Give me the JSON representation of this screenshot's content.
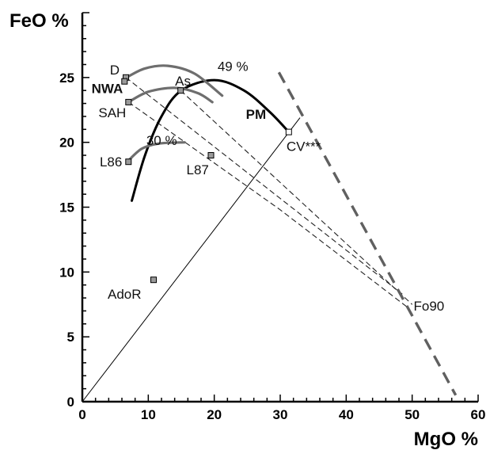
{
  "chart_data": {
    "type": "scatter",
    "title": "",
    "xlabel": "MgO %",
    "ylabel": "FeO %",
    "xlim": [
      0,
      60
    ],
    "ylim": [
      0,
      30
    ],
    "x_ticks": [
      0,
      10,
      20,
      30,
      40,
      50,
      60
    ],
    "y_ticks": [
      0,
      5,
      10,
      15,
      20,
      25
    ],
    "grid": false,
    "colors": {
      "axis": "#000000",
      "pm_curve": "#000000",
      "grey_curves": "#6e6e6e",
      "dashed_guides": "#222222",
      "olivine_line": "#606060",
      "point_fill": "#9a9a9a"
    },
    "points": [
      {
        "label": "D",
        "x": 6.6,
        "y": 25.0,
        "bold": false
      },
      {
        "label": "NWA",
        "x": 6.4,
        "y": 24.7,
        "bold": true
      },
      {
        "label": "As",
        "x": 14.9,
        "y": 24.0,
        "bold": false
      },
      {
        "label": "SAH",
        "x": 7.0,
        "y": 23.1,
        "bold": false
      },
      {
        "label": "CV***",
        "x": 31.3,
        "y": 20.8,
        "bold": false
      },
      {
        "label": "L87",
        "x": 19.5,
        "y": 19.0,
        "bold": false
      },
      {
        "label": "L86",
        "x": 7.0,
        "y": 18.5,
        "bold": false
      },
      {
        "label": "AdoR",
        "x": 10.8,
        "y": 9.4,
        "bold": false
      },
      {
        "label": "Fo90",
        "x": 49.5,
        "y": 7.2,
        "bold": false
      }
    ],
    "curves": [
      {
        "name": "PM",
        "style": "solid-thick",
        "points": [
          [
            7.5,
            15.5
          ],
          [
            9.5,
            19.0
          ],
          [
            12.0,
            22.0
          ],
          [
            15.0,
            24.0
          ],
          [
            20.0,
            24.8
          ],
          [
            24.5,
            24.0
          ],
          [
            28.5,
            22.3
          ],
          [
            31.3,
            20.8
          ]
        ]
      },
      {
        "name": "D-arc",
        "style": "grey",
        "points": [
          [
            6.7,
            25.0
          ],
          [
            9.5,
            25.7
          ],
          [
            13.0,
            25.9
          ],
          [
            17.0,
            25.3
          ],
          [
            21.2,
            23.6
          ]
        ]
      },
      {
        "name": "SAH-arc",
        "style": "grey",
        "points": [
          [
            7.0,
            23.1
          ],
          [
            10.0,
            23.9
          ],
          [
            14.0,
            24.2
          ],
          [
            17.5,
            23.8
          ],
          [
            19.7,
            23.1
          ]
        ]
      },
      {
        "name": "L86-arc",
        "style": "grey",
        "points": [
          [
            7.0,
            18.6
          ],
          [
            9.0,
            19.5
          ],
          [
            11.5,
            19.9
          ],
          [
            15.5,
            20.0
          ]
        ]
      }
    ],
    "dashed_lines": [
      [
        [
          6.6,
          25.0
        ],
        [
          48.5,
          8.3
        ]
      ],
      [
        [
          14.9,
          24.0
        ],
        [
          50.0,
          7.5
        ]
      ],
      [
        [
          7.0,
          23.1
        ],
        [
          30.0,
          14.8
        ],
        [
          49.5,
          7.2
        ]
      ]
    ],
    "solid_line": [
      [
        0,
        0
      ],
      [
        33.0,
        21.9
      ]
    ],
    "olivine_line": [
      [
        29.8,
        25.4
      ],
      [
        56.6,
        0.5
      ]
    ],
    "annotations": [
      {
        "text": "49 %",
        "x": 20.5,
        "y": 25.5
      },
      {
        "text": "PM",
        "x": 24.8,
        "y": 21.8,
        "bold": true
      },
      {
        "text": "30 %",
        "x": 9.7,
        "y": 19.8
      }
    ]
  }
}
